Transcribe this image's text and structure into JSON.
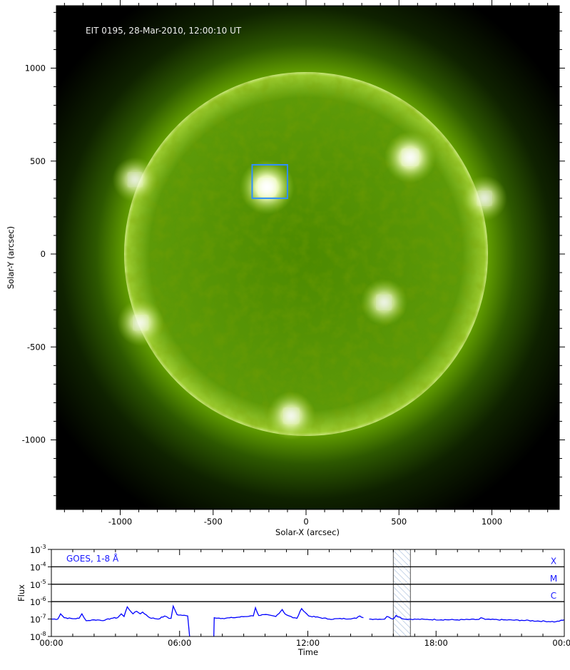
{
  "chart_data": [
    {
      "type": "heatmap",
      "title": "EIT 0195, 28-Mar-2010, 12:00:10 UT",
      "xlabel": "Solar-X (arcsec)",
      "ylabel": "Solar-Y (arcsec)",
      "xlim": [
        -1350,
        1350
      ],
      "ylim": [
        -1370,
        1330
      ],
      "xticks": [
        -1000,
        -500,
        0,
        500,
        1000
      ],
      "yticks": [
        1000,
        500,
        0,
        -500,
        -1000
      ],
      "xtick_labels": [
        "-1000",
        "-500",
        "0",
        "500",
        "1000"
      ],
      "ytick_labels": [
        "1000",
        "500",
        "0",
        "-500",
        "-1000"
      ],
      "solar_radius_arcsec": 975,
      "colormap": [
        "#000000",
        "#1f3a00",
        "#4f7f00",
        "#7fb000",
        "#d6ef7a",
        "#ffffff"
      ],
      "highlight_box": {
        "x": [
          -290,
          -100
        ],
        "y": [
          300,
          480
        ],
        "color": "#2f8fff"
      },
      "bright_regions": [
        {
          "x": -210,
          "y": 360,
          "intensity": 1.0
        },
        {
          "x": 560,
          "y": 520,
          "intensity": 0.9
        },
        {
          "x": 420,
          "y": -260,
          "intensity": 0.75
        },
        {
          "x": -920,
          "y": 400,
          "intensity": 0.7
        },
        {
          "x": -890,
          "y": -370,
          "intensity": 0.75
        },
        {
          "x": 960,
          "y": 300,
          "intensity": 0.7
        },
        {
          "x": -80,
          "y": -870,
          "intensity": 0.8
        }
      ]
    },
    {
      "type": "line",
      "title": "",
      "legend": "GOES, 1-8 Å",
      "xlabel": "Time",
      "ylabel": "Flux",
      "xlim": [
        "00:00",
        "24:00"
      ],
      "xticks": [
        "00:00",
        "06:00",
        "12:00",
        "18:00",
        "00:00"
      ],
      "ylim": [
        1e-08,
        0.001
      ],
      "yscale": "log",
      "yticks": [
        {
          "base": "10",
          "exp": "-3"
        },
        {
          "base": "10",
          "exp": "-4"
        },
        {
          "base": "10",
          "exp": "-5"
        },
        {
          "base": "10",
          "exp": "-6"
        },
        {
          "base": "10",
          "exp": "-7"
        },
        {
          "base": "10",
          "exp": "-8"
        }
      ],
      "class_lines": [
        {
          "label": "X",
          "flux": 0.0001
        },
        {
          "label": "M",
          "flux": 1e-05
        },
        {
          "label": "C",
          "flux": 1e-06
        }
      ],
      "highlight_interval_hours": [
        16.0,
        16.8
      ],
      "series_color": "#0000ff",
      "x_hours_segments": [
        [
          [
            0,
            1e-07
          ],
          [
            0.3,
            1e-07
          ],
          [
            0.43,
            2e-07
          ],
          [
            0.6,
            1.2e-07
          ],
          [
            1.0,
            1.05e-07
          ],
          [
            1.3,
            1.1e-07
          ],
          [
            1.43,
            2e-07
          ],
          [
            1.63,
            8e-08
          ],
          [
            2.0,
            9e-08
          ],
          [
            2.5,
            8.5e-08
          ],
          [
            2.8,
            1.1e-07
          ],
          [
            3.1,
            1.2e-07
          ],
          [
            3.27,
            2e-07
          ],
          [
            3.4,
            1.4e-07
          ],
          [
            3.55,
            5e-07
          ],
          [
            3.82,
            2e-07
          ],
          [
            3.99,
            2.8e-07
          ],
          [
            4.16,
            2e-07
          ],
          [
            4.27,
            2.5e-07
          ],
          [
            4.6,
            1.2e-07
          ],
          [
            5.0,
            1e-07
          ],
          [
            5.3,
            1.5e-07
          ],
          [
            5.5,
            1.1e-07
          ],
          [
            5.6,
            1.1e-07
          ],
          [
            5.7,
            5.5e-07
          ],
          [
            5.88,
            1.8e-07
          ],
          [
            6.38,
            1.5e-07
          ],
          [
            6.47,
            1e-08
          ]
        ],
        [
          [
            7.6,
            1e-08
          ],
          [
            7.62,
            1.2e-07
          ],
          [
            8.0,
            1.1e-07
          ],
          [
            8.5,
            1.2e-07
          ],
          [
            9.3,
            1.5e-07
          ],
          [
            9.45,
            1.5e-07
          ],
          [
            9.55,
            4.5e-07
          ],
          [
            9.7,
            1.6e-07
          ],
          [
            9.95,
            1.8e-07
          ],
          [
            10.5,
            1.4e-07
          ],
          [
            10.8,
            3.5e-07
          ],
          [
            10.93,
            2e-07
          ],
          [
            11.3,
            1.2e-07
          ],
          [
            11.49,
            1.1e-07
          ],
          [
            11.71,
            4e-07
          ],
          [
            12.04,
            1.5e-07
          ],
          [
            13.0,
            1e-07
          ],
          [
            14.27,
            1.1e-07
          ],
          [
            14.43,
            1.5e-07
          ],
          [
            14.6,
            1.2e-07
          ]
        ],
        [
          [
            14.87,
            1e-07
          ],
          [
            15.6,
            1e-07
          ],
          [
            15.7,
            1.4e-07
          ],
          [
            15.99,
            1e-07
          ],
          [
            16.13,
            1.6e-07
          ],
          [
            16.49,
            1e-07
          ],
          [
            17.5,
            9.5e-08
          ],
          [
            19.0,
            9e-08
          ],
          [
            20.0,
            9.5e-08
          ],
          [
            20.1,
            1.2e-07
          ],
          [
            20.3,
            9.5e-08
          ],
          [
            22.0,
            8.5e-08
          ],
          [
            23.6,
            7e-08
          ],
          [
            23.93,
            8.5e-08
          ],
          [
            24.0,
            9e-08
          ]
        ]
      ]
    }
  ]
}
